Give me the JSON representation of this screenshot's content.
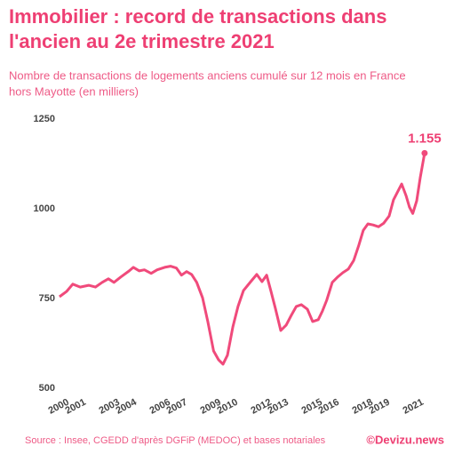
{
  "chart_data": {
    "type": "line",
    "title_lines": [
      "Immobilier : record de transactions dans",
      "l'ancien au 2e trimestre 2021"
    ],
    "subtitle_lines": [
      "Nombre de transactions de logements anciens cumulé sur 12 mois en France",
      "hors Mayotte (en milliers)"
    ],
    "source": "Source : Insee, CGEDD d'après DGFiP (MEDOC) et bases notariales",
    "credit": "©Devizu.news",
    "end_label": "1.155",
    "color": "#f04a7b",
    "grid": false,
    "xlim": [
      1999.4,
      2021.2
    ],
    "xticks": [
      2000,
      2001,
      2003,
      2004,
      2006,
      2007,
      2009,
      2010,
      2012,
      2013,
      2015,
      2016,
      2018,
      2019,
      2021
    ],
    "ylim": [
      500,
      1250
    ],
    "yticks": [
      500,
      750,
      1000,
      1250
    ],
    "x": [
      1999.47,
      1999.9,
      2000.26,
      2000.7,
      2001.2,
      2001.6,
      2002.0,
      2002.37,
      2002.7,
      2003.1,
      2003.6,
      2003.85,
      2004.2,
      2004.5,
      2004.9,
      2005.26,
      2005.7,
      2006.05,
      2006.4,
      2006.7,
      2007.0,
      2007.3,
      2007.6,
      2007.95,
      2008.26,
      2008.6,
      2008.9,
      2009.16,
      2009.42,
      2009.74,
      2010.05,
      2010.37,
      2010.8,
      2011.16,
      2011.47,
      2011.74,
      2012.0,
      2012.26,
      2012.58,
      2012.9,
      2013.2,
      2013.5,
      2013.8,
      2014.16,
      2014.47,
      2014.8,
      2015.05,
      2015.3,
      2015.63,
      2015.95,
      2016.26,
      2016.58,
      2016.9,
      2017.2,
      2017.47,
      2017.74,
      2018.05,
      2018.37,
      2018.68,
      2019.0,
      2019.26,
      2019.53,
      2019.74,
      2020.0,
      2020.2,
      2020.4,
      2020.63,
      2020.84,
      2021.1
    ],
    "values": [
      755,
      770,
      790,
      782,
      787,
      782,
      795,
      805,
      795,
      810,
      827,
      837,
      827,
      830,
      820,
      830,
      837,
      840,
      835,
      815,
      825,
      817,
      795,
      752,
      686,
      604,
      579,
      567,
      592,
      671,
      728,
      772,
      797,
      817,
      797,
      815,
      770,
      723,
      661,
      676,
      703,
      728,
      733,
      720,
      686,
      691,
      715,
      745,
      795,
      810,
      822,
      832,
      856,
      898,
      940,
      958,
      955,
      950,
      960,
      980,
      1025,
      1050,
      1069,
      1037,
      1005,
      987,
      1022,
      1087,
      1155
    ]
  }
}
